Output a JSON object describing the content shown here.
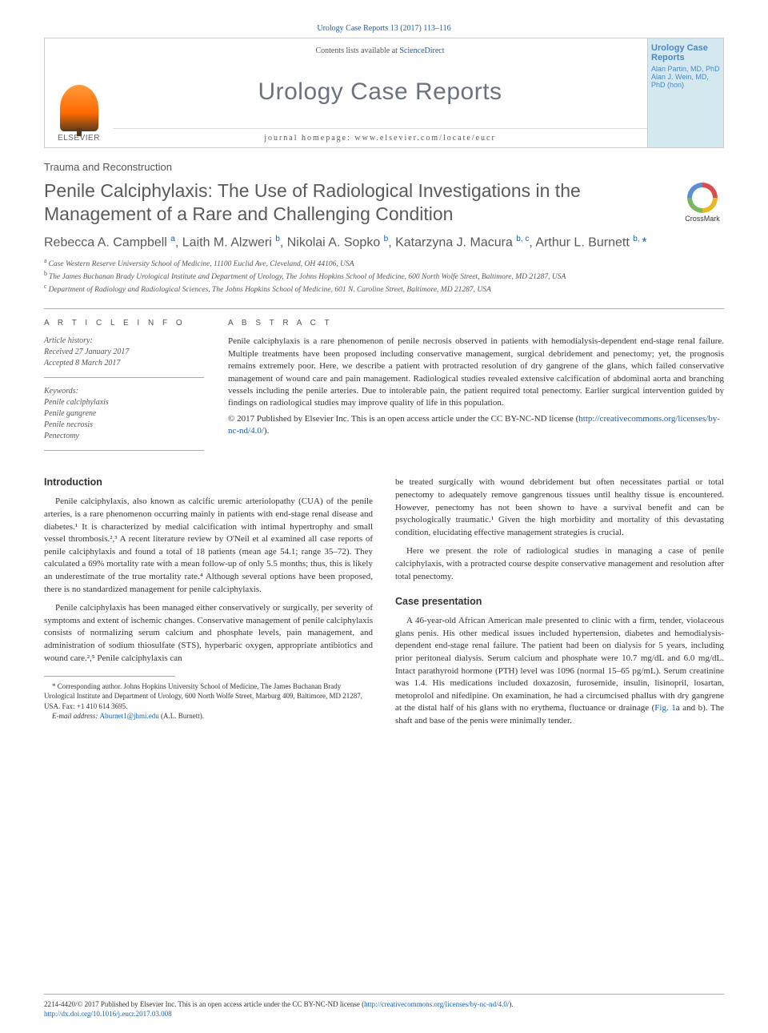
{
  "citation": "Urology Case Reports 13 (2017) 113–116",
  "masthead": {
    "contents_prefix": "Contents lists available at ",
    "contents_link": "ScienceDirect",
    "journal": "Urology Case Reports",
    "homepage_prefix": "journal homepage: ",
    "homepage": "www.elsevier.com/locate/eucr",
    "publisher": "ELSEVIER",
    "cover_title": "Urology Case Reports",
    "cover_editors": "Alan Partin, MD, PhD\nAlan J. Wein, MD, PhD (hon)"
  },
  "section": "Trauma and Reconstruction",
  "title": "Penile Calciphylaxis: The Use of Radiological Investigations in the Management of a Rare and Challenging Condition",
  "crossmark": "CrossMark",
  "authors_html": "Rebecca A. Campbell <sup>a</sup>, Laith M. Alzweri <sup>b</sup>, Nikolai A. Sopko <sup>b</sup>, Katarzyna J. Macura <sup>b, c</sup>, Arthur L. Burnett <sup>b, </sup><span class='corr'>*</span>",
  "affiliations": [
    {
      "sup": "a",
      "text": "Case Western Reserve University School of Medicine, 11100 Euclid Ave, Cleveland, OH 44106, USA"
    },
    {
      "sup": "b",
      "text": "The James Buchanan Brady Urological Institute and Department of Urology, The Johns Hopkins School of Medicine, 600 North Wolfe Street, Baltimore, MD 21287, USA"
    },
    {
      "sup": "c",
      "text": "Department of Radiology and Radiological Sciences, The Johns Hopkins School of Medicine, 601 N. Caroline Street, Baltimore, MD 21287, USA"
    }
  ],
  "info": {
    "heading_info": "A R T I C L E   I N F O",
    "heading_abs": "A B S T R A C T",
    "history_label": "Article history:",
    "received": "Received 27 January 2017",
    "accepted": "Accepted 8 March 2017",
    "keywords_label": "Keywords:",
    "keywords": [
      "Penile calciphylaxis",
      "Penile gangrene",
      "Penile necrosis",
      "Penectomy"
    ]
  },
  "abstract": "Penile calciphylaxis is a rare phenomenon of penile necrosis observed in patients with hemodialysis-dependent end-stage renal failure. Multiple treatments have been proposed including conservative management, surgical debridement and penectomy; yet, the prognosis remains extremely poor. Here, we describe a patient with protracted resolution of dry gangrene of the glans, which failed conservative management of wound care and pain management. Radiological studies revealed extensive calcification of abdominal aorta and branching vessels including the penile arteries. Due to intolerable pain, the patient required total penectomy. Earlier surgical intervention guided by findings on radiological studies may improve quality of life in this population.",
  "cc": {
    "copyright": "© 2017 Published by Elsevier Inc. This is an open access article under the CC BY-NC-ND license (",
    "link_text": "http://creativecommons.org/licenses/by-nc-nd/4.0/",
    "close": ")."
  },
  "body": {
    "intro_heading": "Introduction",
    "case_heading": "Case presentation",
    "p1": "Penile calciphylaxis, also known as calcific uremic arteriolopathy (CUA) of the penile arteries, is a rare phenomenon occurring mainly in patients with end-stage renal disease and diabetes.¹ It is characterized by medial calcification with intimal hypertrophy and small vessel thrombosis.²,³ A recent literature review by O'Neil et al examined all case reports of penile calciphylaxis and found a total of 18 patients (mean age 54.1; range 35–72). They calculated a 69% mortality rate with a mean follow-up of only 5.5 months; thus, this is likely an underestimate of the true mortality rate.⁴ Although several options have been proposed, there is no standardized management for penile calciphylaxis.",
    "p2": "Penile calciphylaxis has been managed either conservatively or surgically, per severity of symptoms and extent of ischemic changes. Conservative management of penile calciphylaxis consists of normalizing serum calcium and phosphate levels, pain management, and administration of sodium thiosulfate (STS), hyperbaric oxygen, appropriate antibiotics and wound care.²,⁵ Penile calciphylaxis can",
    "p3": "be treated surgically with wound debridement but often necessitates partial or total penectomy to adequately remove gangrenous tissues until healthy tissue is encountered. However, penectomy has not been shown to have a survival benefit and can be psychologically traumatic.¹ Given the high morbidity and mortality of this devastating condition, elucidating effective management strategies is crucial.",
    "p4": "Here we present the role of radiological studies in managing a case of penile calciphylaxis, with a protracted course despite conservative management and resolution after total penectomy.",
    "p5_a": "A 46-year-old African American male presented to clinic with a firm, tender, violaceous glans penis. His other medical issues included hypertension, diabetes and hemodialysis-dependent end-stage renal failure. The patient had been on dialysis for 5 years, including prior peritoneal dialysis. Serum calcium and phosphate were 10.7 mg/dL and 6.0 mg/dL. Intact parathyroid hormone (PTH) level was 1096 (normal 15–65 pg/mL). Serum creatinine was 1.4. His medications included doxazosin, furosemide, insulin, lisinopril, losartan, metoprolol and nifedipine. On examination, he had a circumcised phallus with dry gangrene at the distal half of his glans with no erythema, fluctuance or drainage (",
    "p5_link": "Fig. 1",
    "p5_b": "a and b). The shaft and base of the penis were minimally tender."
  },
  "footnote": {
    "corr_label": "* Corresponding author.",
    "corr_text": " Johns Hopkins University School of Medicine, The James Buchanan Brady Urological Institute and Department of Urology, 600 North Wolfe Street, Marburg 409, Baltimore, MD 21287, USA. Fax: +1 410 614 3695.",
    "email_label": "E-mail address: ",
    "email": "Aburnet1@jhmi.edu",
    "email_name": " (A.L. Burnett)."
  },
  "footer": {
    "issn": "2214-4420/© 2017 Published by Elsevier Inc. This is an open access article under the CC BY-NC-ND license (",
    "cc_link": "http://creativecommons.org/licenses/by-nc-nd/4.0/",
    "close1": ").",
    "doi_label": "http://dx.doi.org/",
    "doi": "10.1016/j.eucr.2017.03.008"
  },
  "colors": {
    "link": "#1a5fb4",
    "text": "#333333",
    "muted": "#555555",
    "rule": "#aaaaaa"
  }
}
